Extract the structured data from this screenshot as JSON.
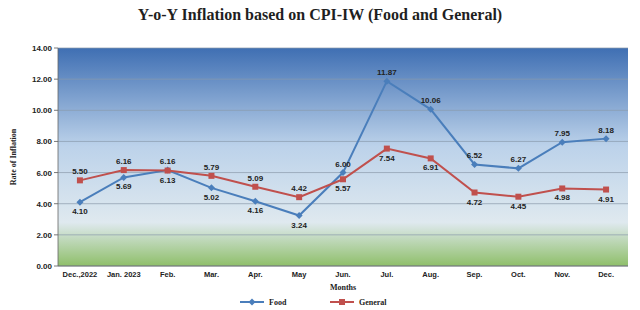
{
  "chart_data": {
    "type": "line",
    "title": "Y-o-Y Inflation based on CPI-IW (Food and General)",
    "xlabel": "Months",
    "ylabel": "Rate of Inflation",
    "categories": [
      "Dec.,2022",
      "Jan. 2023",
      "Feb.",
      "Mar.",
      "Apr.",
      "May",
      "Jun.",
      "Jul.",
      "Aug.",
      "Sep.",
      "Oct.",
      "Nov.",
      "Dec."
    ],
    "series": [
      {
        "name": "Food",
        "color": "#4a7ebb",
        "marker": "diamond",
        "values": [
          4.1,
          5.69,
          6.16,
          5.02,
          4.16,
          3.24,
          6.0,
          11.87,
          10.06,
          6.52,
          6.27,
          7.95,
          8.18
        ],
        "value_labels": [
          "4.10",
          "5.69",
          "6.16",
          "5.02",
          "4.16",
          "3.24",
          "6.00",
          "11.87",
          "10.06",
          "6.52",
          "6.27",
          "7.95",
          "8.18"
        ]
      },
      {
        "name": "General",
        "color": "#c0504d",
        "marker": "square",
        "values": [
          5.5,
          6.16,
          6.13,
          5.79,
          5.09,
          4.42,
          5.57,
          7.54,
          6.91,
          4.72,
          4.45,
          4.98,
          4.91
        ],
        "value_labels": [
          "5.50",
          "6.16",
          "6.13",
          "5.79",
          "5.09",
          "4.42",
          "5.57",
          "7.54",
          "6.91",
          "4.72",
          "4.45",
          "4.98",
          "4.91"
        ]
      }
    ],
    "ylim": [
      0,
      14
    ],
    "yticks": [
      {
        "value": 0,
        "label": "0.00"
      },
      {
        "value": 2,
        "label": "2.00"
      },
      {
        "value": 4,
        "label": "4.00"
      },
      {
        "value": 6,
        "label": "6.00"
      },
      {
        "value": 8,
        "label": "8.00"
      },
      {
        "value": 10,
        "label": "10.00"
      },
      {
        "value": 12,
        "label": "12.00"
      },
      {
        "value": 14,
        "label": "14.00"
      }
    ],
    "grid": true,
    "data_labels": true,
    "legend": "bottom"
  }
}
